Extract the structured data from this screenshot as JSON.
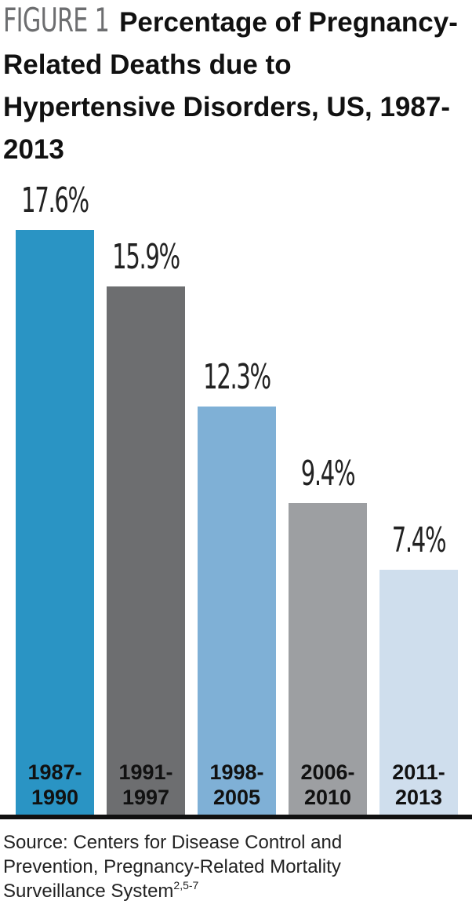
{
  "chart_data": {
    "type": "bar",
    "figure_label": "FIGURE 1",
    "title": "Percentage of Pregnancy-Related Deaths due to Hypertensive Disorders, US, 1987-2013",
    "categories": [
      "1987-1990",
      "1991-1997",
      "1998-2005",
      "2006-2010",
      "2011-2013"
    ],
    "values": [
      17.6,
      15.9,
      12.3,
      9.4,
      7.4
    ],
    "value_labels": [
      "17.6%",
      "15.9%",
      "12.3%",
      "9.4%",
      "7.4%"
    ],
    "colors": [
      "#2a94c4",
      "#6d6e70",
      "#7fb0d6",
      "#9d9fa2",
      "#cfdeed"
    ],
    "source": "Source: Centers for Disease Control and Prevention, Pregnancy-Related Mortality Surveillance System",
    "source_refs": "2,5-7"
  }
}
